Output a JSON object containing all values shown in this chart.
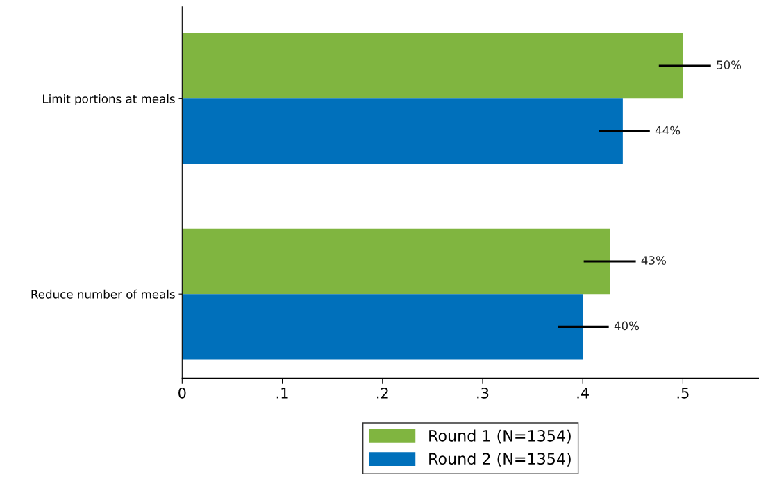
{
  "chart_data": {
    "type": "bar",
    "orientation": "horizontal",
    "categories": [
      "Limit portions at meals",
      "Reduce number of meals"
    ],
    "series": [
      {
        "name": "Round 1 (N=1354)",
        "color": "#80b540",
        "values": [
          0.5,
          0.427
        ],
        "errors": [
          [
            0.476,
            0.528
          ],
          [
            0.401,
            0.453
          ]
        ],
        "value_labels": [
          "50%",
          "43%"
        ]
      },
      {
        "name": "Round 2 (N=1354)",
        "color": "#0070bb",
        "values": [
          0.44,
          0.4
        ],
        "errors": [
          [
            0.416,
            0.467
          ],
          [
            0.375,
            0.426
          ]
        ],
        "value_labels": [
          "44%",
          "40%"
        ]
      }
    ],
    "xlim": [
      0,
      0.576
    ],
    "xticks": [
      0,
      {
        "value": 0.1,
        "label": ".1"
      },
      {
        "value": 0.2,
        "label": ".2"
      },
      {
        "value": 0.3,
        "label": ".3"
      },
      {
        "value": 0.4,
        "label": ".4"
      },
      {
        "value": 0.5,
        "label": ".5"
      }
    ],
    "grid": false,
    "legend": "bottom"
  }
}
